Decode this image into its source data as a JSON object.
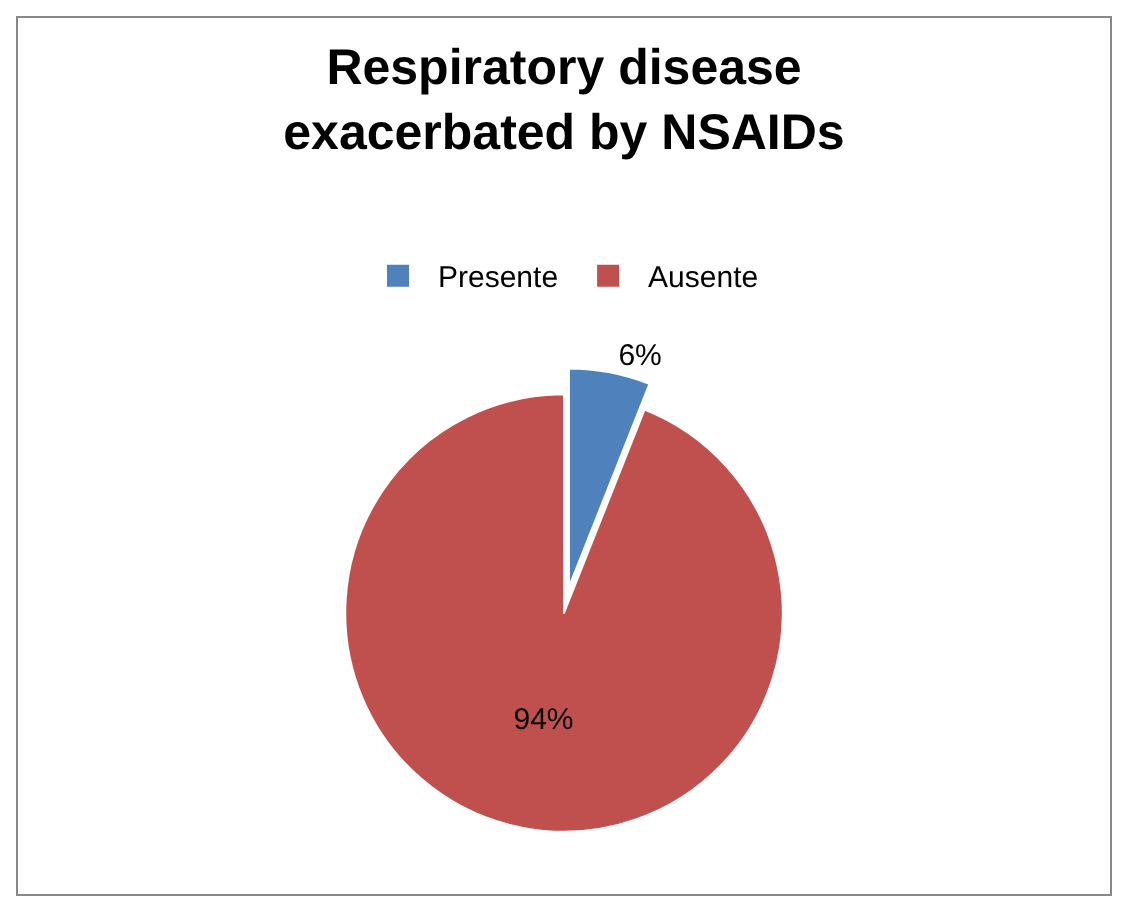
{
  "chart_data": {
    "type": "pie",
    "title": "Respiratory disease exacerbated by NSAIDs",
    "categories": [
      "Presente",
      "Ausente"
    ],
    "values": [
      6,
      94
    ],
    "colors": [
      "#4f81bd",
      "#c0504d"
    ],
    "value_labels": [
      "6%",
      "94%"
    ],
    "legend": "top"
  }
}
